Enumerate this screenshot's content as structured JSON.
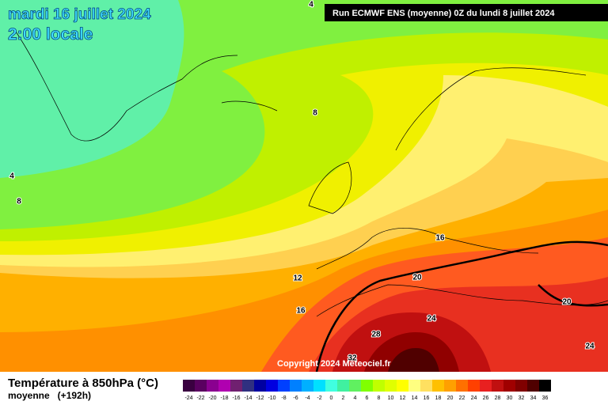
{
  "header": {
    "date": "mardi 16 juillet 2024",
    "time": "2:00 locale",
    "run": "Run ECMWF ENS (moyenne) 0Z du lundi 8 juillet 2024"
  },
  "map": {
    "contour_labels": [
      4,
      4,
      8,
      8,
      12,
      16,
      16,
      20,
      20,
      24,
      24,
      28,
      32
    ],
    "copyright": "Copyright 2024 Meteociel.fr"
  },
  "footer": {
    "title": "Température à 850hPa (°C)",
    "subtitle": "moyenne   (+192h)"
  },
  "scale": {
    "labels": [
      -24,
      -22,
      -20,
      -18,
      -16,
      -14,
      -12,
      -10,
      -8,
      -6,
      -4,
      -2,
      0,
      2,
      4,
      6,
      8,
      10,
      12,
      14,
      16,
      18,
      20,
      22,
      24,
      26,
      28,
      30,
      32,
      34,
      36
    ],
    "colors": [
      "#3a0040",
      "#5a0060",
      "#8a0090",
      "#b000b0",
      "#702070",
      "#303080",
      "#0000a0",
      "#0000e0",
      "#0040ff",
      "#0080ff",
      "#00b0ff",
      "#00e0ff",
      "#40ffe0",
      "#40f0a0",
      "#60f060",
      "#80ff00",
      "#c0ff00",
      "#e0ff00",
      "#ffff00",
      "#ffff80",
      "#ffe060",
      "#ffc000",
      "#ffa000",
      "#ff7000",
      "#ff4000",
      "#e82020",
      "#c01010",
      "#a00000",
      "#800000",
      "#500000",
      "#000000"
    ]
  }
}
